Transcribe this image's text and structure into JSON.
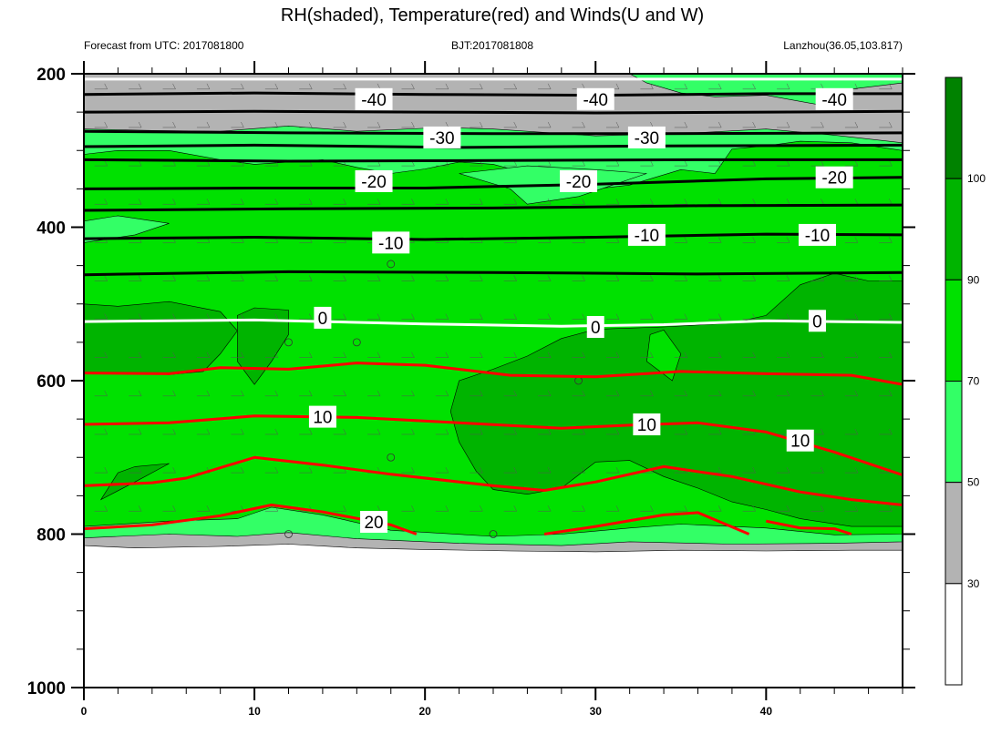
{
  "chart_data": {
    "type": "contour",
    "title": "RH(shaded), Temperature(red) and Winds(U and W)",
    "subtitle_left": "Forecast from UTC: 2017081800",
    "subtitle_center": "BJT:2017081808",
    "subtitle_right": "Lanzhou(36.05,103.817)",
    "xlabel": "",
    "ylabel": "",
    "xlim": [
      0,
      48
    ],
    "ylim": [
      1000,
      200
    ],
    "x_ticks": [
      0,
      10,
      20,
      30,
      40
    ],
    "y_ticks": [
      200,
      400,
      600,
      800,
      1000
    ],
    "colorbar": {
      "ticks": [
        30,
        50,
        70,
        90,
        100
      ],
      "levels": [
        {
          "from": 0,
          "to": 30,
          "color": "#ffffff"
        },
        {
          "from": 30,
          "to": 50,
          "color": "#b3b3b3"
        },
        {
          "from": 50,
          "to": 70,
          "color": "#33ff66"
        },
        {
          "from": 70,
          "to": 90,
          "color": "#00e100"
        },
        {
          "from": 90,
          "to": 100,
          "color": "#00b400"
        },
        {
          "from": 100,
          "to": 110,
          "color": "#008200"
        }
      ]
    },
    "temperature_contours": [
      {
        "value": -40,
        "color": "#000000",
        "levels": [
          {
            "label": "-40",
            "x": 17,
            "p": 233
          },
          {
            "label": "-40",
            "x": 30,
            "p": 233
          },
          {
            "label": "-40",
            "x": 44,
            "p": 233
          }
        ]
      },
      {
        "value": -30,
        "color": "#000000",
        "levels": [
          {
            "label": "-30",
            "x": 21,
            "p": 283
          },
          {
            "label": "-30",
            "x": 33,
            "p": 283
          }
        ]
      },
      {
        "value": -20,
        "color": "#000000",
        "levels": [
          {
            "label": "-20",
            "x": 17,
            "p": 340
          },
          {
            "label": "-20",
            "x": 29,
            "p": 340
          },
          {
            "label": "-20",
            "x": 44,
            "p": 335
          }
        ]
      },
      {
        "value": -10,
        "color": "#000000",
        "levels": [
          {
            "label": "-10",
            "x": 18,
            "p": 420
          },
          {
            "label": "-10",
            "x": 33,
            "p": 410
          },
          {
            "label": "-10",
            "x": 43,
            "p": 410
          }
        ]
      },
      {
        "value": 0,
        "color": "#ffffff",
        "levels": [
          {
            "label": "0",
            "x": 14,
            "p": 518
          },
          {
            "label": "0",
            "x": 30,
            "p": 530
          },
          {
            "label": "0",
            "x": 43,
            "p": 522
          }
        ]
      },
      {
        "value": 10,
        "color": "#ff0000",
        "levels": [
          {
            "label": "10",
            "x": 14,
            "p": 647
          },
          {
            "label": "10",
            "x": 33,
            "p": 657
          },
          {
            "label": "10",
            "x": 42,
            "p": 678
          }
        ]
      },
      {
        "value": 20,
        "color": "#ff0000",
        "levels": [
          {
            "label": "20",
            "x": 17,
            "p": 784
          }
        ]
      }
    ]
  }
}
